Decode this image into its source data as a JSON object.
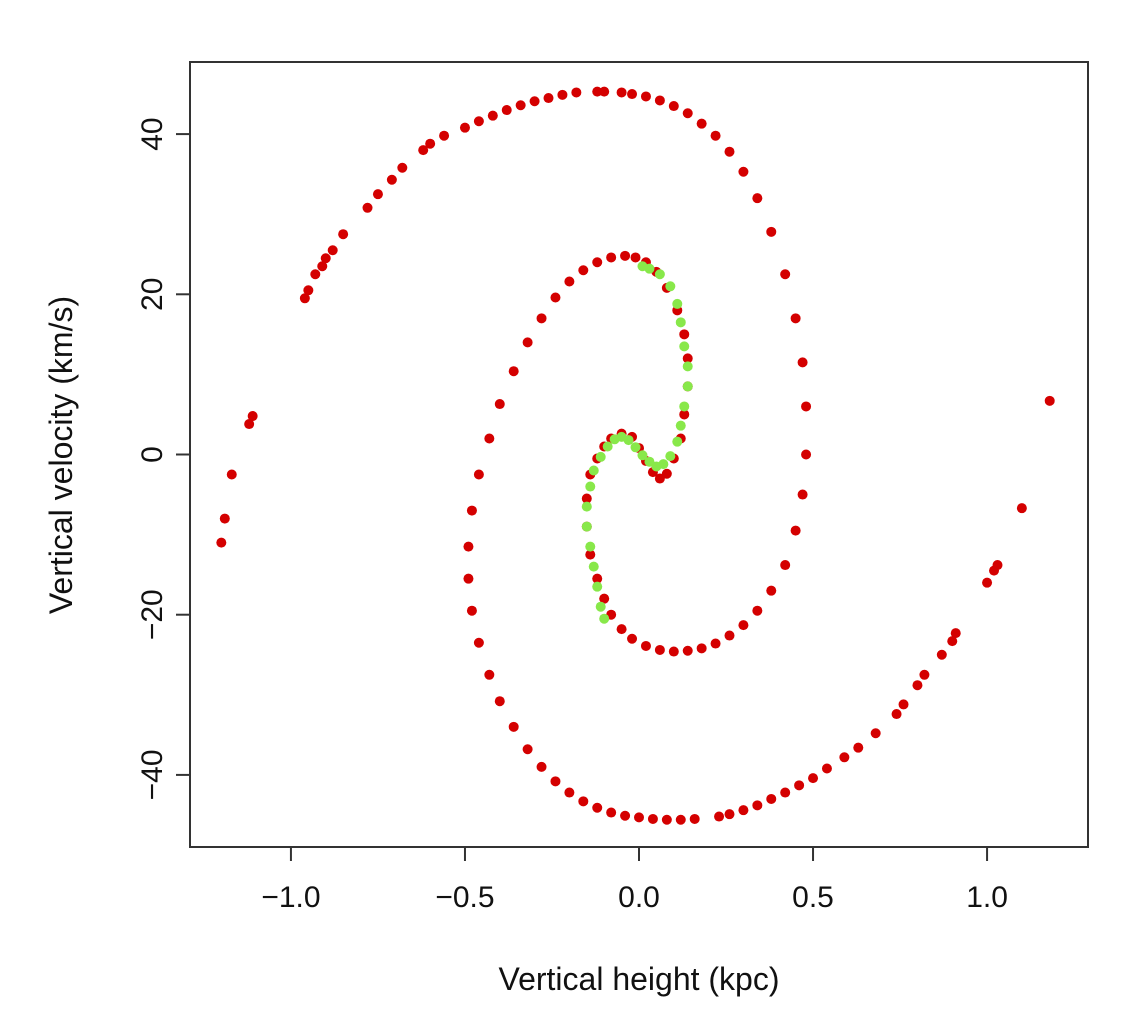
{
  "chart_data": {
    "type": "scatter",
    "title": "",
    "xlabel": "Vertical height (kpc)",
    "ylabel": "Vertical velocity (km/s)",
    "xlim": [
      -1.29,
      1.29
    ],
    "ylim": [
      -49,
      49
    ],
    "x_ticks": [
      -1.0,
      -0.5,
      0.0,
      0.5,
      1.0
    ],
    "x_tick_labels": [
      "−1.0",
      "−0.5",
      "0.0",
      "0.5",
      "1.0"
    ],
    "y_ticks": [
      -40,
      -20,
      0,
      20,
      40
    ],
    "y_tick_labels": [
      "−40",
      "−20",
      "0",
      "20",
      "40"
    ],
    "grid": false,
    "legend": "none",
    "series": [
      {
        "color": "#d40000",
        "description_points": "outer spiral arm and dense inner spiral",
        "points": [
          [
            -1.2,
            -11
          ],
          [
            -1.19,
            -8
          ],
          [
            -1.17,
            -2.5
          ],
          [
            -1.12,
            3.8
          ],
          [
            -1.11,
            4.8
          ],
          [
            -0.96,
            19.5
          ],
          [
            -0.95,
            20.5
          ],
          [
            -0.93,
            22.5
          ],
          [
            -0.91,
            23.5
          ],
          [
            -0.9,
            24.5
          ],
          [
            -0.88,
            25.5
          ],
          [
            -0.85,
            27.5
          ],
          [
            -0.78,
            30.8
          ],
          [
            -0.75,
            32.5
          ],
          [
            -0.71,
            34.3
          ],
          [
            -0.68,
            35.8
          ],
          [
            -0.62,
            38.0
          ],
          [
            -0.6,
            38.8
          ],
          [
            -0.56,
            39.8
          ],
          [
            -0.5,
            40.8
          ],
          [
            -0.46,
            41.6
          ],
          [
            -0.42,
            42.3
          ],
          [
            -0.38,
            43.0
          ],
          [
            -0.34,
            43.6
          ],
          [
            -0.3,
            44.1
          ],
          [
            -0.26,
            44.5
          ],
          [
            -0.22,
            44.9
          ],
          [
            -0.18,
            45.2
          ],
          [
            -0.12,
            45.3
          ],
          [
            -0.1,
            45.3
          ],
          [
            -0.05,
            45.2
          ],
          [
            -0.02,
            45.0
          ],
          [
            0.02,
            44.7
          ],
          [
            0.06,
            44.2
          ],
          [
            0.1,
            43.5
          ],
          [
            0.14,
            42.6
          ],
          [
            0.18,
            41.3
          ],
          [
            0.22,
            39.8
          ],
          [
            0.26,
            37.8
          ],
          [
            0.3,
            35.3
          ],
          [
            0.34,
            32.0
          ],
          [
            0.38,
            27.8
          ],
          [
            0.42,
            22.5
          ],
          [
            0.45,
            17.0
          ],
          [
            0.47,
            11.5
          ],
          [
            0.48,
            6.0
          ],
          [
            0.48,
            0.0
          ],
          [
            0.47,
            -5.0
          ],
          [
            0.45,
            -9.5
          ],
          [
            0.42,
            -13.8
          ],
          [
            0.38,
            -17.0
          ],
          [
            0.34,
            -19.5
          ],
          [
            0.3,
            -21.3
          ],
          [
            0.26,
            -22.6
          ],
          [
            0.22,
            -23.6
          ],
          [
            0.18,
            -24.2
          ],
          [
            0.14,
            -24.5
          ],
          [
            0.1,
            -24.6
          ],
          [
            0.06,
            -24.4
          ],
          [
            0.02,
            -23.9
          ],
          [
            -0.02,
            -23.0
          ],
          [
            -0.05,
            -21.8
          ],
          [
            -0.08,
            -20.0
          ],
          [
            -0.1,
            -18.0
          ],
          [
            -0.12,
            -15.5
          ],
          [
            -0.14,
            -12.5
          ],
          [
            -0.15,
            -9.0
          ],
          [
            -0.15,
            -5.5
          ],
          [
            -0.14,
            -2.5
          ],
          [
            -0.12,
            -0.5
          ],
          [
            -0.1,
            1.0
          ],
          [
            -0.08,
            2.0
          ],
          [
            -0.05,
            2.6
          ],
          [
            -0.02,
            2.2
          ],
          [
            0.0,
            0.8
          ],
          [
            0.02,
            -0.8
          ],
          [
            0.04,
            -2.2
          ],
          [
            0.06,
            -3.0
          ],
          [
            0.08,
            -2.4
          ],
          [
            0.1,
            -0.5
          ],
          [
            0.12,
            2.0
          ],
          [
            0.13,
            5.0
          ],
          [
            0.14,
            8.5
          ],
          [
            0.14,
            12.0
          ],
          [
            0.13,
            15.0
          ],
          [
            0.11,
            18.0
          ],
          [
            0.08,
            20.8
          ],
          [
            0.05,
            22.8
          ],
          [
            0.02,
            24.0
          ],
          [
            -0.01,
            24.6
          ],
          [
            -0.04,
            24.8
          ],
          [
            -0.08,
            24.6
          ],
          [
            -0.12,
            24.0
          ],
          [
            -0.16,
            23.0
          ],
          [
            -0.2,
            21.6
          ],
          [
            -0.24,
            19.6
          ],
          [
            -0.28,
            17.0
          ],
          [
            -0.32,
            14.0
          ],
          [
            -0.36,
            10.4
          ],
          [
            -0.4,
            6.3
          ],
          [
            -0.43,
            2.0
          ],
          [
            -0.46,
            -2.5
          ],
          [
            -0.48,
            -7.0
          ],
          [
            -0.49,
            -11.5
          ],
          [
            -0.49,
            -15.5
          ],
          [
            -0.48,
            -19.5
          ],
          [
            -0.46,
            -23.5
          ],
          [
            -0.43,
            -27.5
          ],
          [
            -0.4,
            -30.8
          ],
          [
            -0.36,
            -34.0
          ],
          [
            -0.32,
            -36.8
          ],
          [
            -0.28,
            -39.0
          ],
          [
            -0.24,
            -40.8
          ],
          [
            -0.2,
            -42.2
          ],
          [
            -0.16,
            -43.3
          ],
          [
            -0.12,
            -44.1
          ],
          [
            -0.08,
            -44.7
          ],
          [
            -0.04,
            -45.1
          ],
          [
            0.0,
            -45.3
          ],
          [
            0.04,
            -45.5
          ],
          [
            0.08,
            -45.6
          ],
          [
            0.12,
            -45.6
          ],
          [
            0.16,
            -45.5
          ],
          [
            0.23,
            -45.2
          ],
          [
            0.26,
            -44.9
          ],
          [
            0.3,
            -44.4
          ],
          [
            0.34,
            -43.8
          ],
          [
            0.38,
            -43.0
          ],
          [
            0.42,
            -42.2
          ],
          [
            0.46,
            -41.3
          ],
          [
            0.5,
            -40.4
          ],
          [
            0.54,
            -39.2
          ],
          [
            0.59,
            -37.8
          ],
          [
            0.63,
            -36.6
          ],
          [
            0.68,
            -34.8
          ],
          [
            0.74,
            -32.4
          ],
          [
            0.76,
            -31.2
          ],
          [
            0.8,
            -28.8
          ],
          [
            0.82,
            -27.5
          ],
          [
            0.87,
            -25.0
          ],
          [
            0.9,
            -23.3
          ],
          [
            0.91,
            -22.3
          ],
          [
            1.0,
            -16.0
          ],
          [
            1.02,
            -14.5
          ],
          [
            1.03,
            -13.8
          ],
          [
            1.1,
            -6.7
          ],
          [
            1.18,
            6.7
          ]
        ]
      },
      {
        "color": "#88e84a",
        "description_points": "inner core spiral",
        "points": [
          [
            -0.1,
            -20.5
          ],
          [
            -0.11,
            -19.0
          ],
          [
            -0.12,
            -16.5
          ],
          [
            -0.13,
            -14.0
          ],
          [
            -0.14,
            -11.5
          ],
          [
            -0.15,
            -9.0
          ],
          [
            -0.15,
            -6.5
          ],
          [
            -0.14,
            -4.0
          ],
          [
            -0.13,
            -2.0
          ],
          [
            -0.11,
            -0.3
          ],
          [
            -0.09,
            1.0
          ],
          [
            -0.07,
            1.9
          ],
          [
            -0.05,
            2.2
          ],
          [
            -0.03,
            1.8
          ],
          [
            -0.01,
            0.9
          ],
          [
            0.01,
            -0.1
          ],
          [
            0.03,
            -0.9
          ],
          [
            0.05,
            -1.5
          ],
          [
            0.07,
            -1.2
          ],
          [
            0.09,
            -0.2
          ],
          [
            0.11,
            1.6
          ],
          [
            0.12,
            3.6
          ],
          [
            0.13,
            6.0
          ],
          [
            0.14,
            8.5
          ],
          [
            0.14,
            11.0
          ],
          [
            0.13,
            13.5
          ],
          [
            0.12,
            16.5
          ],
          [
            0.11,
            18.8
          ],
          [
            0.09,
            21.0
          ],
          [
            0.06,
            22.5
          ],
          [
            0.03,
            23.2
          ],
          [
            0.01,
            23.5
          ]
        ]
      }
    ]
  }
}
